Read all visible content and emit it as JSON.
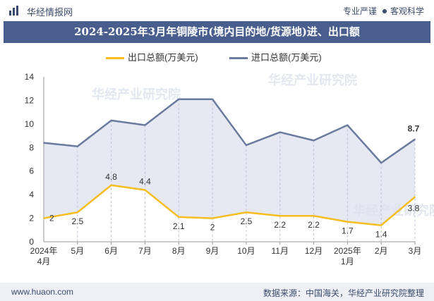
{
  "header": {
    "brand": "华经情报网",
    "tag1": "专业严谨",
    "tag2": "客观科学"
  },
  "footer": {
    "website": "www.huaon.com",
    "source": "数据来源：中国海关，华经产业研究院整理"
  },
  "colors": {
    "title_bg": "#4a5e8e",
    "export_line": "#f5bd1f",
    "import_line": "#6a7b9f",
    "area_fill": "#dde1ec"
  },
  "chart_data": {
    "type": "line",
    "title": "2024-2025年3月年铜陵市(境内目的地/货源地)进、出口额",
    "categories": [
      "2024年\n4月",
      "5月",
      "6月",
      "7月",
      "8月",
      "9月",
      "10月",
      "11月",
      "12月",
      "2025年\n1月",
      "2月",
      "3月"
    ],
    "ylim": [
      0,
      14
    ],
    "yticks": [
      0,
      2,
      4,
      6,
      8,
      10,
      12,
      14
    ],
    "grid": false,
    "legend_position": "top",
    "series": [
      {
        "name": "出口总额(万美元)",
        "values": [
          2,
          2.5,
          4.8,
          4.4,
          2.1,
          2,
          2.5,
          2.2,
          2.2,
          1.7,
          1.4,
          3.8
        ],
        "labels": [
          "2",
          "2.5",
          "4.8",
          "4.4",
          "2.1",
          "2",
          "2.5",
          "2.2",
          "2.2",
          "1.7",
          "1.4",
          "3.8"
        ]
      },
      {
        "name": "进口总额(万美元)",
        "values": [
          8.4,
          8.1,
          10.3,
          9.9,
          12.1,
          12.1,
          8.2,
          9.3,
          8.6,
          9.9,
          6.7,
          8.7
        ],
        "labels": [
          "",
          "",
          "",
          "",
          "",
          "",
          "",
          "",
          "",
          "",
          "",
          "8.7"
        ]
      }
    ]
  },
  "watermark": "华经产业研究院"
}
